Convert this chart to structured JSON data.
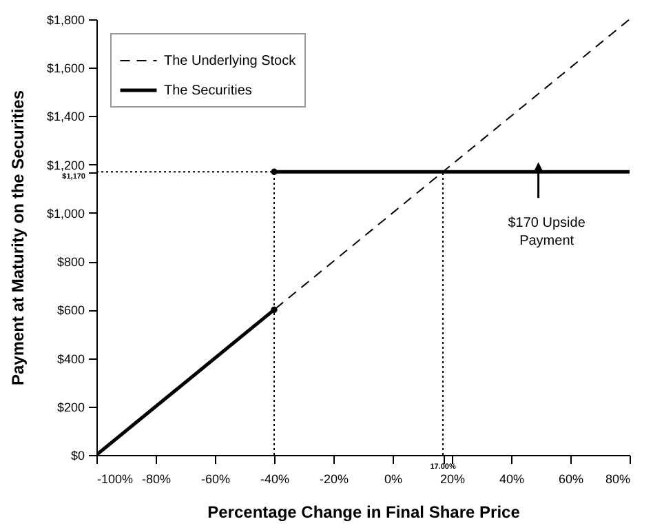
{
  "chart_data": {
    "type": "line",
    "xlabel": "Percentage Change in Final Share Price",
    "ylabel": "Payment at Maturity on the Securities",
    "xlim": [
      -100,
      80
    ],
    "ylim": [
      0,
      1800
    ],
    "xticks": [
      {
        "value": -100,
        "label": "-100%"
      },
      {
        "value": -80,
        "label": "-80%"
      },
      {
        "value": -60,
        "label": "-60%"
      },
      {
        "value": -40,
        "label": "-40%"
      },
      {
        "value": -20,
        "label": "-20%"
      },
      {
        "value": 0,
        "label": "0%"
      },
      {
        "value": 17,
        "label": null
      },
      {
        "value": 20,
        "label": "20%"
      },
      {
        "value": 40,
        "label": "40%"
      },
      {
        "value": 60,
        "label": "60%"
      },
      {
        "value": 80,
        "label": "80%"
      }
    ],
    "yticks": [
      {
        "value": 0,
        "label": "$0"
      },
      {
        "value": 200,
        "label": "$200"
      },
      {
        "value": 400,
        "label": "$400"
      },
      {
        "value": 600,
        "label": "$600"
      },
      {
        "value": 800,
        "label": "$800"
      },
      {
        "value": 1000,
        "label": "$1,000"
      },
      {
        "value": 1170,
        "label": null
      },
      {
        "value": 1200,
        "label": "$1,200"
      },
      {
        "value": 1400,
        "label": "$1,400"
      },
      {
        "value": 1600,
        "label": "$1,600"
      },
      {
        "value": 1800,
        "label": "$1,800"
      }
    ],
    "grid": false,
    "legend": "top left",
    "series": [
      {
        "name": "The Underlying Stock",
        "line_style": "dashed",
        "color": "#000000",
        "x": [
          -100,
          80
        ],
        "values": [
          0,
          1800
        ]
      },
      {
        "name": "The Securities",
        "line_style": "solid",
        "color": "#000000",
        "x": [
          -100,
          -40,
          null,
          -40,
          80
        ],
        "values": [
          0,
          600,
          null,
          1170,
          1170
        ]
      },
      {
        "line_style": "dotted",
        "color": "#000000",
        "x": [
          -100,
          17
        ],
        "values": [
          1170,
          1170
        ]
      },
      {
        "line_style": "dotted",
        "color": "#000000",
        "x": [
          -40,
          -40
        ],
        "values": [
          0,
          1170
        ]
      },
      {
        "line_style": "dotted",
        "color": "#000000",
        "x": [
          17,
          17
        ],
        "values": [
          0,
          1170
        ]
      },
      {
        "type": "scatter",
        "marker": "circle",
        "color": "#000000",
        "x": [
          -40,
          -40
        ],
        "values": [
          600,
          1170
        ]
      }
    ],
    "annotations": [
      {
        "text": "$1,170",
        "x": -100,
        "y": 1170
      },
      {
        "text": "17.00%",
        "x": 17,
        "y": 0
      },
      {
        "text": "$170 Upside Payment",
        "x": 52,
        "y": 1170
      }
    ]
  }
}
